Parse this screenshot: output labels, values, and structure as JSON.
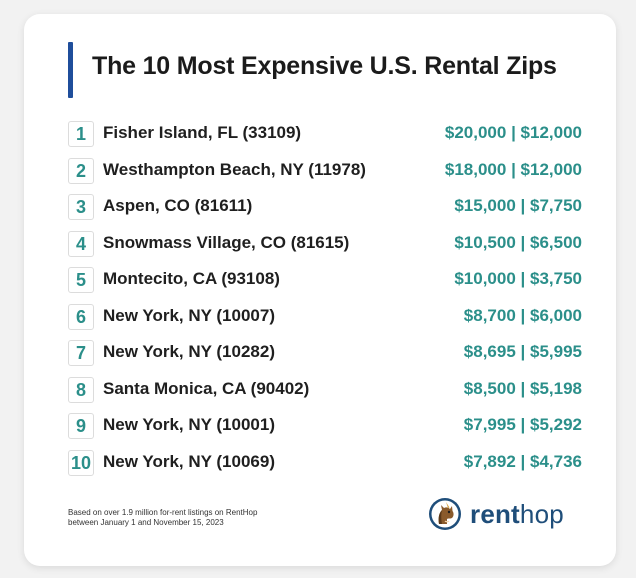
{
  "title": "The 10 Most Expensive U.S. Rental Zips",
  "rows": [
    {
      "rank": "1",
      "place": "Fisher Island, FL (33109)",
      "price": "$20,000 | $12,000"
    },
    {
      "rank": "2",
      "place": "Westhampton Beach, NY (11978)",
      "price": "$18,000 | $12,000"
    },
    {
      "rank": "3",
      "place": "Aspen, CO (81611)",
      "price": "$15,000 | $7,750"
    },
    {
      "rank": "4",
      "place": "Snowmass Village, CO (81615)",
      "price": "$10,500 | $6,500"
    },
    {
      "rank": "5",
      "place": "Montecito, CA (93108)",
      "price": "$10,000 | $3,750"
    },
    {
      "rank": "6",
      "place": "New York, NY (10007)",
      "price": "$8,700 | $6,000"
    },
    {
      "rank": "7",
      "place": "New York, NY (10282)",
      "price": "$8,695 | $5,995"
    },
    {
      "rank": "8",
      "place": "Santa Monica, CA (90402)",
      "price": "$8,500 | $5,198"
    },
    {
      "rank": "9",
      "place": "New York, NY (10001)",
      "price": "$7,995 | $5,292"
    },
    {
      "rank": "10",
      "place": "New York, NY (10069)",
      "price": "$7,892 | $4,736"
    }
  ],
  "footnote": {
    "line1": "Based on over 1.9 million for-rent listings on RentHop",
    "line2": "between January 1 and November 15, 2023"
  },
  "brand": {
    "name_bold": "rent",
    "name_light": "hop",
    "logo_icon": "horse-logo-icon"
  },
  "colors": {
    "accent_bar": "#1f4e9b",
    "teal": "#2b8f8a",
    "brand_text": "#1f4e7a"
  }
}
